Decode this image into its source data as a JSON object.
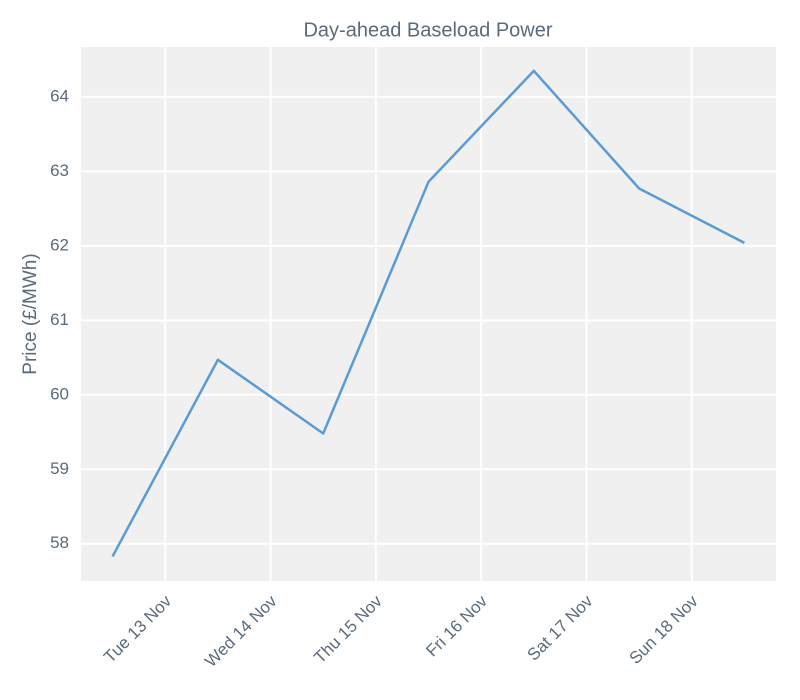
{
  "chart_data": {
    "type": "line",
    "title": "Day-ahead Baseload Power",
    "ylabel": "Price (£/MWh)",
    "x": [
      12.5,
      13.5,
      14.5,
      15.5,
      16.5,
      17.5,
      18.5
    ],
    "series": [
      {
        "name": "Day-ahead Baseload",
        "color": "#5b9bd5",
        "values": [
          57.83,
          60.47,
          59.48,
          62.86,
          64.35,
          62.77,
          62.04
        ]
      }
    ],
    "xlim": [
      12.2,
      18.8
    ],
    "xticks": [
      {
        "value": 13,
        "label": "Tue 13 Nov"
      },
      {
        "value": 14,
        "label": "Wed 14 Nov"
      },
      {
        "value": 15,
        "label": "Thu 15 Nov"
      },
      {
        "value": 16,
        "label": "Fri 16 Nov"
      },
      {
        "value": 17,
        "label": "Sat 17 Nov"
      },
      {
        "value": 18,
        "label": "Sun 18 Nov"
      }
    ],
    "ylim": [
      57.5,
      64.67
    ],
    "yticks": [
      58,
      59,
      60,
      61,
      62,
      63,
      64
    ],
    "grid": true
  }
}
